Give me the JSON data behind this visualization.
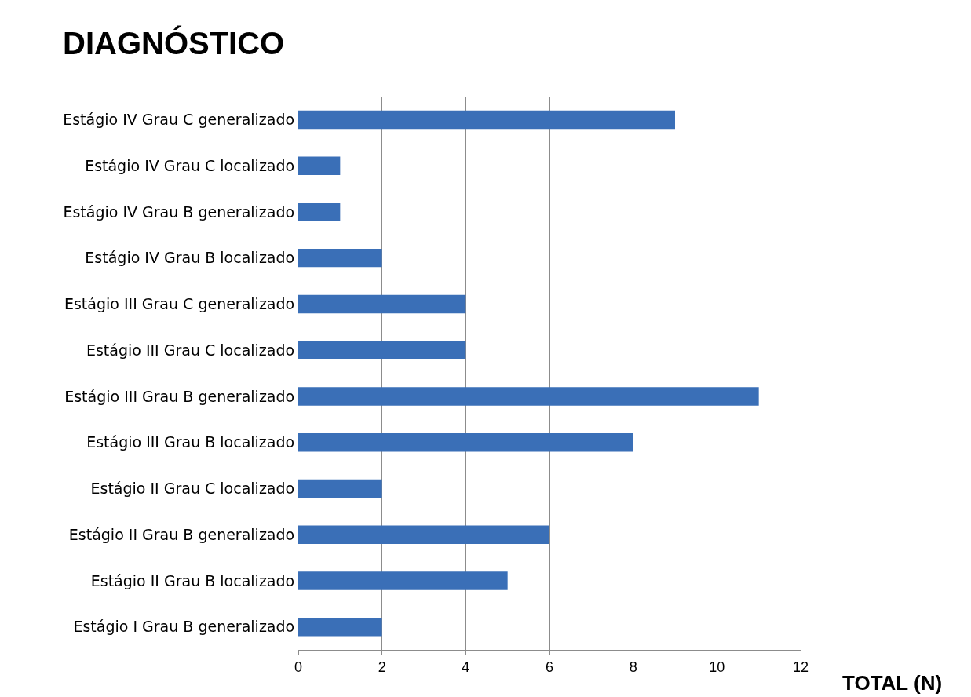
{
  "chart_data": {
    "type": "bar",
    "orientation": "horizontal",
    "title": "DIAGNÓSTICO",
    "xlabel": "TOTAL (N)",
    "categories": [
      "Estágio IV Grau C generalizado",
      "Estágio IV Grau C localizado",
      "Estágio IV Grau B generalizado",
      "Estágio IV Grau B localizado",
      "Estágio III Grau C generalizado",
      "Estágio III Grau C localizado",
      "Estágio III Grau B generalizado",
      "Estágio III Grau B localizado",
      "Estágio II Grau C localizado",
      "Estágio II Grau B generalizado",
      "Estágio II Grau B localizado",
      "Estágio I Grau B generalizado"
    ],
    "values": [
      9,
      1,
      1,
      2,
      4,
      4,
      11,
      8,
      2,
      6,
      5,
      2
    ],
    "color": "#3a6fb7",
    "xlim": [
      0,
      12
    ],
    "xticks": [
      0,
      2,
      4,
      6,
      8,
      10,
      12
    ],
    "grid": "x"
  }
}
